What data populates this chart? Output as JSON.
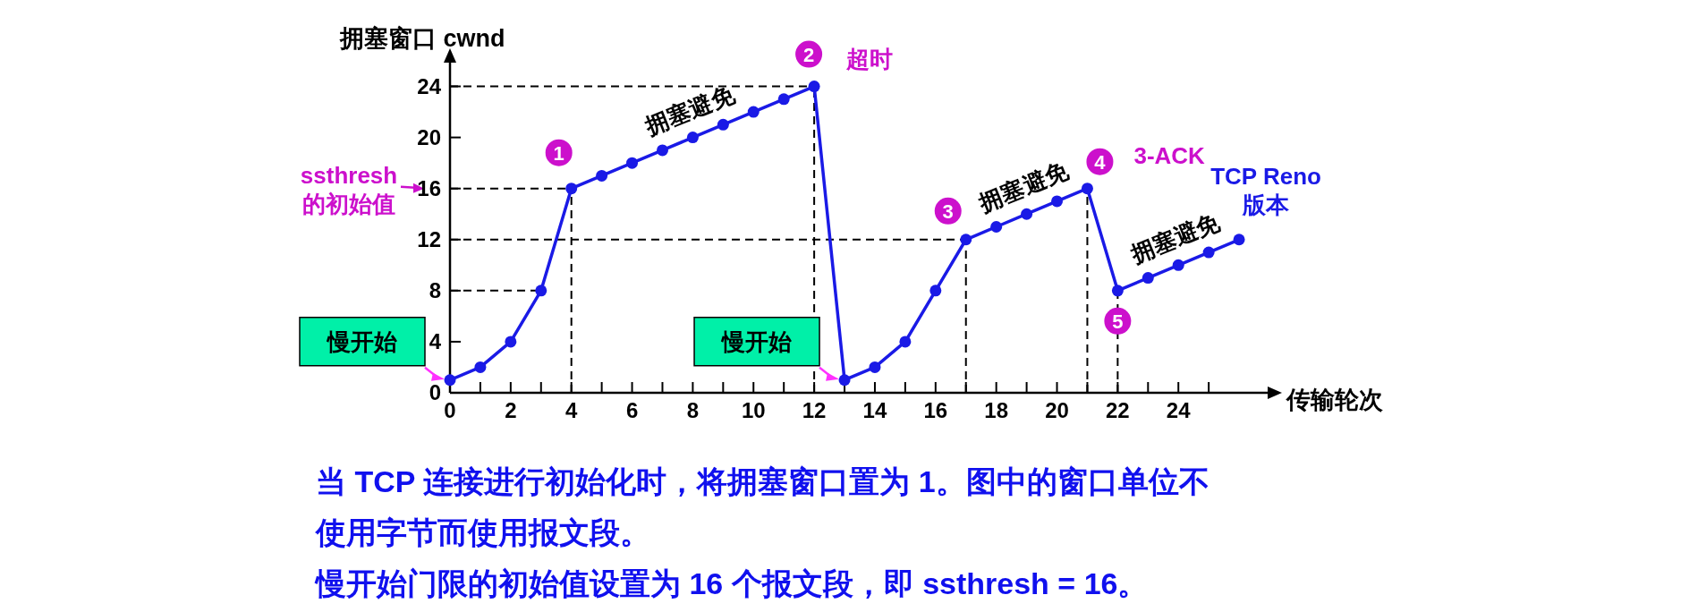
{
  "chart_data": {
    "type": "line",
    "ylabel": "拥塞窗口 cwnd",
    "xlabel": "传输轮次",
    "x": [
      0,
      1,
      2,
      3,
      4,
      5,
      6,
      7,
      8,
      9,
      10,
      11,
      12,
      13,
      14,
      15,
      16,
      17,
      18,
      19,
      20,
      21,
      22,
      23,
      24,
      25,
      26
    ],
    "series": [
      {
        "name": "TCP Reno 版本",
        "color": "#1a1ae6",
        "values": [
          1,
          2,
          4,
          8,
          16,
          17,
          18,
          19,
          20,
          21,
          22,
          23,
          24,
          1,
          2,
          4,
          8,
          12,
          13,
          14,
          15,
          16,
          8,
          9,
          10,
          11,
          12
        ]
      }
    ],
    "xlim": [
      0,
      27
    ],
    "ylim": [
      0,
      26
    ],
    "xticks": [
      0,
      {
        "value": 1,
        "label": null
      },
      2,
      {
        "value": 3,
        "label": null
      },
      4,
      {
        "value": 5,
        "label": null
      },
      6,
      {
        "value": 7,
        "label": null
      },
      8,
      {
        "value": 9,
        "label": null
      },
      10,
      {
        "value": 11,
        "label": null
      },
      12,
      {
        "value": 13,
        "label": null
      },
      14,
      {
        "value": 15,
        "label": null
      },
      16,
      {
        "value": 17,
        "label": null
      },
      18,
      {
        "value": 19,
        "label": null
      },
      20,
      {
        "value": 21,
        "label": null
      },
      22,
      {
        "value": 23,
        "label": null
      },
      24,
      {
        "value": 25,
        "label": null
      }
    ],
    "yticks": [
      0,
      4,
      8,
      12,
      16,
      20,
      24
    ],
    "marker": "circle",
    "ref_lines": [
      {
        "axis": "y",
        "value": 24,
        "color": "#000000",
        "line_style": "dashed"
      },
      {
        "axis": "y",
        "value": 16,
        "label": "ssthresh\n的初始值",
        "color": "#000000",
        "line_style": "dashed"
      },
      {
        "axis": "y",
        "value": 12,
        "color": "#000000",
        "line_style": "dashed"
      },
      {
        "axis": "y",
        "value": 8,
        "color": "#000000",
        "line_style": "dashed"
      },
      {
        "axis": "x",
        "value": 4,
        "color": "#000000",
        "line_style": "dashed"
      },
      {
        "axis": "x",
        "value": 12,
        "color": "#000000",
        "line_style": "dashed"
      },
      {
        "axis": "x",
        "value": 17,
        "color": "#000000",
        "line_style": "dashed"
      },
      {
        "axis": "x",
        "value": 21,
        "color": "#000000",
        "line_style": "dashed"
      },
      {
        "axis": "x",
        "value": 22,
        "color": "#000000",
        "line_style": "dashed"
      }
    ],
    "annotations": [
      {
        "text": "1",
        "x": 4,
        "y": 16
      },
      {
        "text": "2",
        "x": 12,
        "y": 24
      },
      {
        "text": "3",
        "x": 17,
        "y": 12
      },
      {
        "text": "4",
        "x": 21,
        "y": 16
      },
      {
        "text": "5",
        "x": 22,
        "y": 8
      },
      {
        "text": "超时",
        "x": 12,
        "y": 24
      },
      {
        "text": "3-ACK",
        "x": 21,
        "y": 16
      },
      {
        "text": "拥塞避免",
        "x": 8,
        "y": 20
      },
      {
        "text": "拥塞避免",
        "x": 19,
        "y": 14
      },
      {
        "text": "拥塞避免",
        "x": 24,
        "y": 10
      },
      {
        "text": "慢开始",
        "x": 0,
        "y": 1
      },
      {
        "text": "慢开始",
        "x": 13,
        "y": 1
      },
      "当 TCP 连接进行初始化时，将拥塞窗口置为 1。图中的窗口单位不使用字节而使用报文段。",
      "慢开始门限的初始值设置为 16 个报文段，即 ssthresh = 16。"
    ]
  }
}
